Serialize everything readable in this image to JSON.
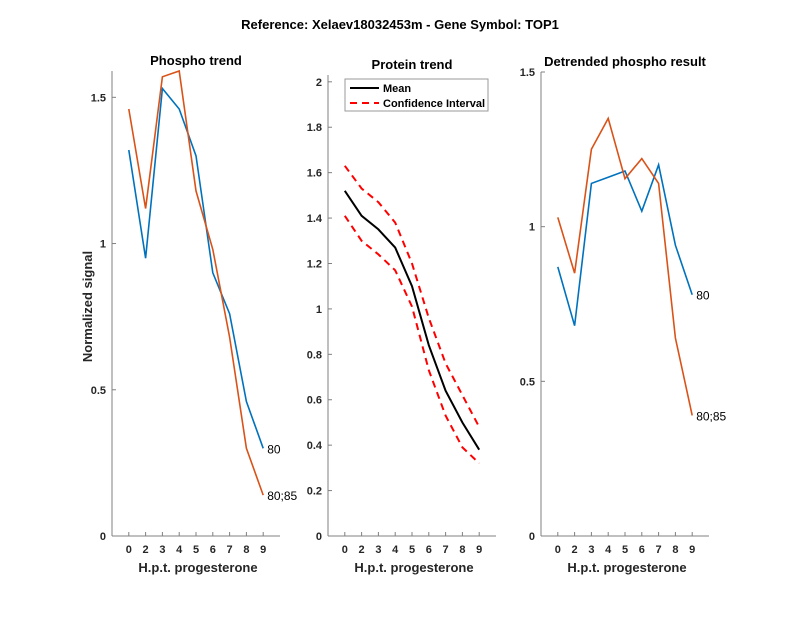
{
  "figure": {
    "title": "Reference:  Xelaev18032453m - Gene Symbol:  TOP1"
  },
  "colors": {
    "blue": "#0072BD",
    "orange": "#D95319",
    "mean": "#000000",
    "ci": "#FF0000"
  },
  "chart_data": [
    {
      "type": "line",
      "title": "Phospho trend",
      "xlabel": "H.p.t. progesterone",
      "ylabel": "Normalized signal",
      "categories": [
        "0",
        "2",
        "3",
        "4",
        "5",
        "6",
        "7",
        "8",
        "9"
      ],
      "yticks": [
        "0",
        "0.5",
        "1",
        "1.5"
      ],
      "ytick_values": [
        0,
        0.5,
        1,
        1.5
      ],
      "ylim": [
        0,
        1.59
      ],
      "series": [
        {
          "name": "80",
          "color": "blue",
          "values": [
            1.32,
            0.95,
            1.53,
            1.46,
            1.3,
            0.9,
            0.76,
            0.46,
            0.3
          ]
        },
        {
          "name": "80;85",
          "color": "orange",
          "values": [
            1.46,
            1.12,
            1.57,
            1.59,
            1.18,
            0.98,
            0.68,
            0.3,
            0.14
          ]
        }
      ]
    },
    {
      "type": "line",
      "title": "Protein trend",
      "xlabel": "H.p.t. progesterone",
      "ylabel": "",
      "categories": [
        "0",
        "2",
        "3",
        "4",
        "5",
        "6",
        "7",
        "8",
        "9"
      ],
      "yticks": [
        "0",
        "0.2",
        "0.4",
        "0.6",
        "0.8",
        "1",
        "1.2",
        "1.4",
        "1.6",
        "1.8",
        "2"
      ],
      "ytick_values": [
        0,
        0.2,
        0.4,
        0.6,
        0.8,
        1,
        1.2,
        1.4,
        1.6,
        1.8,
        2
      ],
      "ylim": [
        0,
        2.03
      ],
      "legend": {
        "position": "top-left",
        "entries": [
          "Mean",
          "Confidence Interval"
        ]
      },
      "series": [
        {
          "name": "Mean",
          "color": "mean",
          "style": "solid",
          "values": [
            1.52,
            1.41,
            1.35,
            1.27,
            1.1,
            0.84,
            0.64,
            0.5,
            0.38
          ]
        },
        {
          "name": "Confidence Interval (upper)",
          "color": "ci",
          "style": "dashed",
          "values": [
            1.63,
            1.53,
            1.47,
            1.38,
            1.2,
            0.96,
            0.76,
            0.62,
            0.48
          ]
        },
        {
          "name": "Confidence Interval (lower)",
          "color": "ci",
          "style": "dashed",
          "values": [
            1.41,
            1.3,
            1.24,
            1.17,
            1.01,
            0.73,
            0.53,
            0.39,
            0.32
          ]
        }
      ]
    },
    {
      "type": "line",
      "title": "Detrended phospho result",
      "xlabel": "H.p.t. progesterone",
      "ylabel": "",
      "categories": [
        "0",
        "2",
        "3",
        "4",
        "5",
        "6",
        "7",
        "8",
        "9"
      ],
      "yticks": [
        "0",
        "0.5",
        "1",
        "1.5"
      ],
      "ytick_values": [
        0,
        0.5,
        1,
        1.5
      ],
      "ylim": [
        0,
        1.5
      ],
      "series": [
        {
          "name": "80",
          "color": "blue",
          "values": [
            0.87,
            0.68,
            1.14,
            1.16,
            1.18,
            1.05,
            1.2,
            0.94,
            0.78
          ]
        },
        {
          "name": "80;85",
          "color": "orange",
          "values": [
            1.03,
            0.85,
            1.25,
            1.35,
            1.155,
            1.22,
            1.14,
            0.64,
            0.39
          ]
        }
      ]
    }
  ]
}
